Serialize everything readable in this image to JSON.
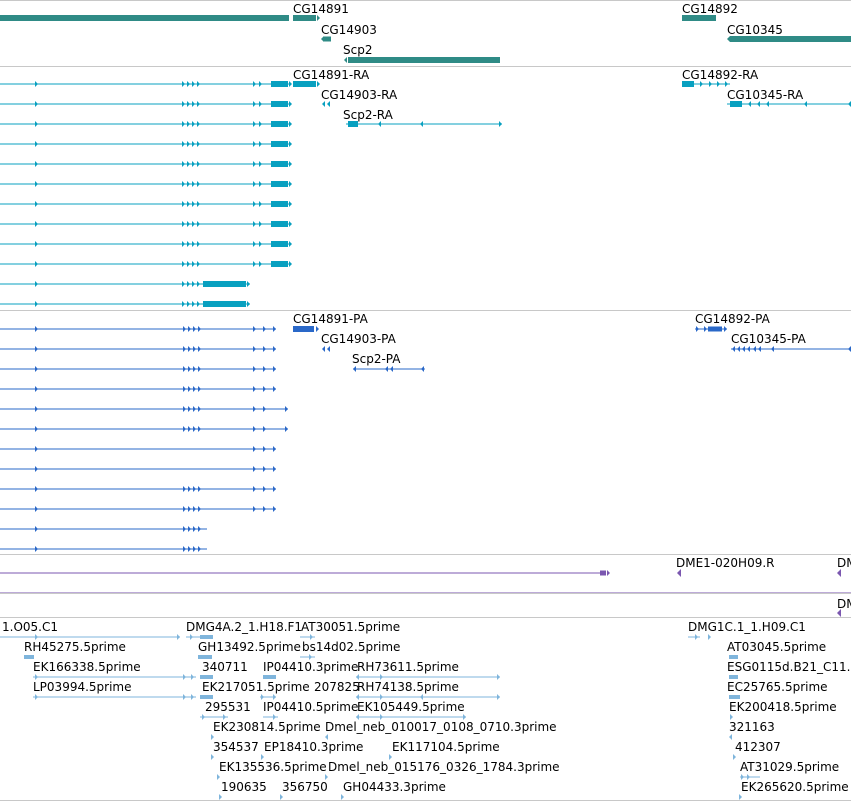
{
  "colors": {
    "gene": "#2f8b86",
    "transcript": "#08a0c0",
    "protein": "#2a68c8",
    "clone_end": "#7b57b0",
    "est": "#7fb5dc",
    "separator": "#c8c8c8"
  },
  "tracks": {
    "genes": {
      "labels": [
        {
          "text": "CG14891"
        },
        {
          "text": "CG14903"
        },
        {
          "text": "Scp2"
        },
        {
          "text": "CG14892"
        },
        {
          "text": "CG10345"
        }
      ]
    },
    "transcripts": {
      "labels": [
        {
          "text": "CG14891-RA"
        },
        {
          "text": "CG14903-RA"
        },
        {
          "text": "Scp2-RA"
        },
        {
          "text": "CG14892-RA"
        },
        {
          "text": "CG10345-RA"
        }
      ]
    },
    "proteins": {
      "labels": [
        {
          "text": "CG14891-PA"
        },
        {
          "text": "CG14903-PA"
        },
        {
          "text": "Scp2-PA"
        },
        {
          "text": "CG14892-PA"
        },
        {
          "text": "CG10345-PA"
        }
      ]
    },
    "clone_ends": {
      "labels": [
        {
          "text": "DME1-020H09.R"
        },
        {
          "text": "DM"
        },
        {
          "text": "DM"
        }
      ]
    },
    "ests": {
      "labels": [
        {
          "text": "1.O05.C1"
        },
        {
          "text": "DMG4A.2_1.H18.F1"
        },
        {
          "text": "AT30051.5prime"
        },
        {
          "text": "DMG1C.1_1.H09.C1"
        },
        {
          "text": "RH45275.5prime"
        },
        {
          "text": "GH13492.5prime"
        },
        {
          "text": "bs14d02.5prime"
        },
        {
          "text": "AT03045.5prime"
        },
        {
          "text": "EK166338.5prime"
        },
        {
          "text": "340711"
        },
        {
          "text": "IP04410.3prime"
        },
        {
          "text": "RH73611.5prime"
        },
        {
          "text": "ESG0115d.B21_C11."
        },
        {
          "text": "LP03994.5prime"
        },
        {
          "text": "EK217051.5prime"
        },
        {
          "text": "207825"
        },
        {
          "text": "RH74138.5prime"
        },
        {
          "text": "EC25765.5prime"
        },
        {
          "text": "295531"
        },
        {
          "text": "IP04410.5prime"
        },
        {
          "text": "EK105449.5prime"
        },
        {
          "text": "EK200418.5prime"
        },
        {
          "text": "EK230814.5prime"
        },
        {
          "text": "Dmel_neb_010017_0108_0710.3prime"
        },
        {
          "text": "321163"
        },
        {
          "text": "354537"
        },
        {
          "text": "EP18410.3prime"
        },
        {
          "text": "EK117104.5prime"
        },
        {
          "text": "412307"
        },
        {
          "text": "EK135536.5prime"
        },
        {
          "text": "Dmel_neb_015176_0326_1784.3prime"
        },
        {
          "text": "AT31029.5prime"
        },
        {
          "text": "190635"
        },
        {
          "text": "356750"
        },
        {
          "text": "GH04433.3prime"
        },
        {
          "text": "EK265620.5prime"
        }
      ]
    }
  }
}
